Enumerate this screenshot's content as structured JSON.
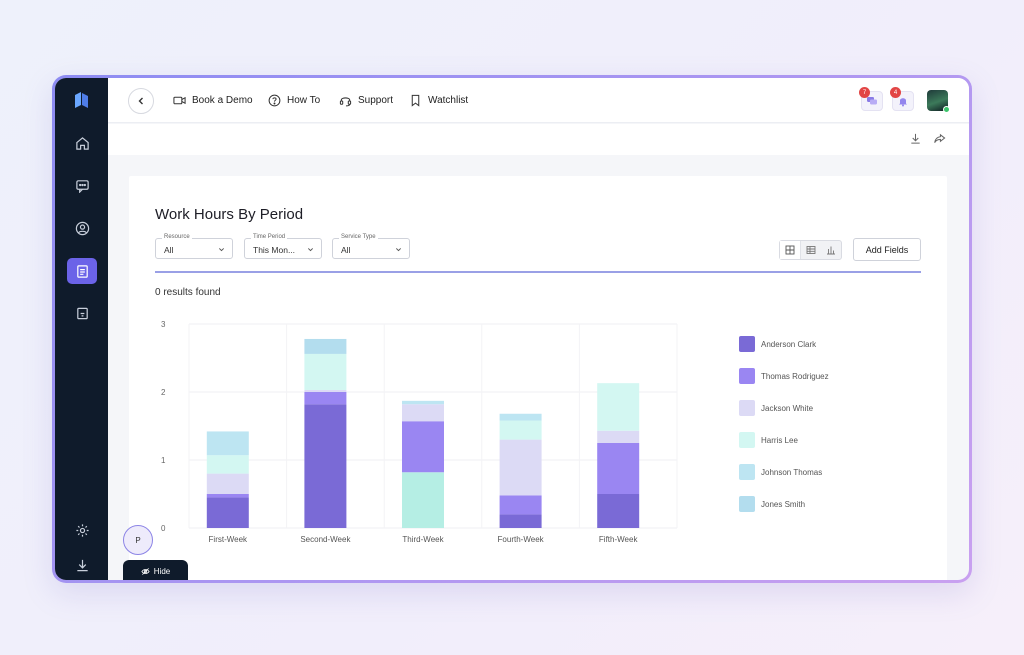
{
  "colors": {
    "sidebar_bg": "#0f1b2b",
    "accent": "#6b63e8",
    "divider": "#9aa0e6"
  },
  "sidebar": {
    "items": [
      {
        "name": "home",
        "icon": "home-icon"
      },
      {
        "name": "messages",
        "icon": "chat-icon"
      },
      {
        "name": "profile",
        "icon": "user-circle-icon"
      },
      {
        "name": "reports",
        "icon": "document-icon",
        "active": true
      },
      {
        "name": "calendar",
        "icon": "calendar-icon"
      }
    ],
    "bottom": [
      {
        "name": "settings",
        "icon": "gear-icon"
      },
      {
        "name": "download",
        "icon": "download-icon"
      }
    ]
  },
  "topbar": {
    "links": [
      {
        "label": "Book a Demo",
        "icon": "video-icon"
      },
      {
        "label": "How To",
        "icon": "help-icon"
      },
      {
        "label": "Support",
        "icon": "headset-icon"
      },
      {
        "label": "Watchlist",
        "icon": "bookmark-icon"
      }
    ],
    "chat_badge": "7",
    "bell_badge": "4"
  },
  "page": {
    "title": "Work Hours By Period",
    "results_text": "0 results found",
    "add_fields_label": "Add Fields",
    "hide_label": "Hide",
    "user_initial": "P"
  },
  "filters": [
    {
      "label": "Resource",
      "value": "All"
    },
    {
      "label": "Time Period",
      "value": "This Mon..."
    },
    {
      "label": "Service Type",
      "value": "All"
    }
  ],
  "chart_data": {
    "type": "bar",
    "stacked": true,
    "categories": [
      "First-Week",
      "Second-Week",
      "Third-Week",
      "Fourth-Week",
      "Fifth-Week"
    ],
    "ylim": [
      0,
      3
    ],
    "yticks": [
      0,
      1,
      2,
      3
    ],
    "legend_position": "right",
    "series": [
      {
        "name": "Anderson Clark",
        "color": "#7a6ad6",
        "values": [
          0.45,
          1.82,
          0,
          0.2,
          0.5
        ]
      },
      {
        "name": "Thomas Rodriguez",
        "color": "#9a86f2",
        "values": [
          0.05,
          0.18,
          0.75,
          0.28,
          0.75
        ]
      },
      {
        "name": "Jackson White",
        "color": "#dcdaf5",
        "values": [
          0.3,
          0.03,
          0.25,
          0.82,
          0.18
        ]
      },
      {
        "name": "Harris Lee",
        "color": "#d3f7f2",
        "values": [
          0.27,
          0.53,
          0,
          0.28,
          0.7
        ]
      },
      {
        "name": "Johnson Thomas",
        "color": "#bde5f2",
        "values": [
          0.35,
          0,
          0.05,
          0.1,
          0
        ]
      },
      {
        "name": "Jones Smith",
        "color": "#b3ddee",
        "values": [
          0,
          0.22,
          0,
          0,
          0
        ]
      }
    ],
    "stack_base_color_third_week": "#b5eee4",
    "extra_segments": {
      "Third-Week": {
        "name": "Harris Lee",
        "value": 0.82
      }
    }
  }
}
